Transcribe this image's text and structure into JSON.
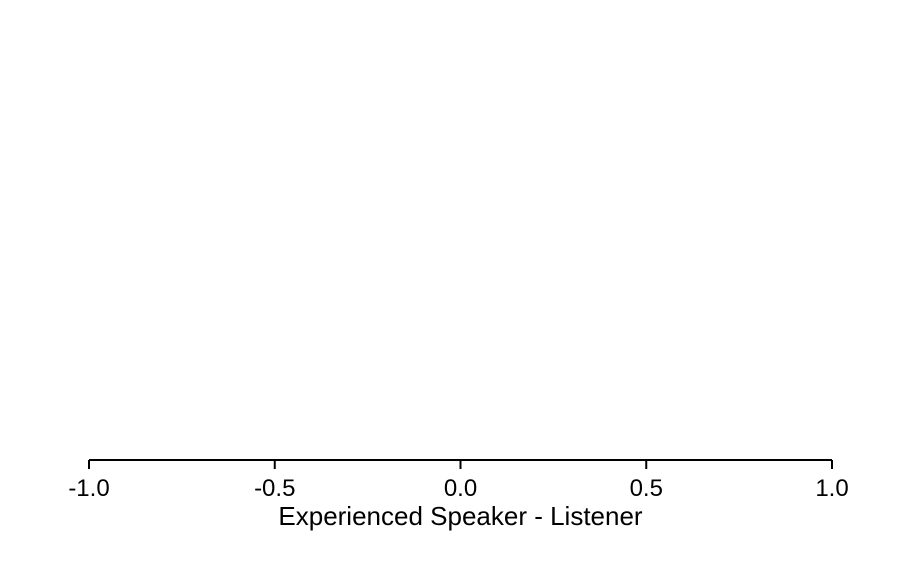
{
  "chart_data": {
    "type": "scatter",
    "title": "",
    "xlabel": "Experienced Speaker - Listener",
    "ylabel": "",
    "xlim": [
      -1.0,
      1.0
    ],
    "x_ticks": [
      -1.0,
      -0.5,
      0.0,
      0.5,
      1.0
    ],
    "x_tick_labels": [
      "-1.0",
      "-0.5",
      "0.0",
      "0.5",
      "1.0"
    ],
    "series": [],
    "grid": false,
    "legend": "none",
    "colors": {
      "axis": "#000000",
      "background": "#ffffff"
    }
  }
}
